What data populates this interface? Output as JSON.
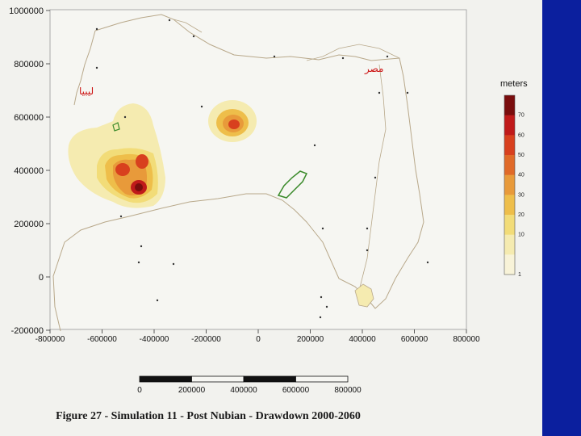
{
  "map": {
    "y_ticks": [
      {
        "label": "1000000",
        "value": 1000000
      },
      {
        "label": "800000",
        "value": 800000
      },
      {
        "label": "600000",
        "value": 600000
      },
      {
        "label": "400000",
        "value": 400000
      },
      {
        "label": "200000",
        "value": 200000
      },
      {
        "label": "0",
        "value": 0
      },
      {
        "label": "-200000",
        "value": -200000
      }
    ],
    "x_ticks": [
      {
        "label": "-800000",
        "value": -800000
      },
      {
        "label": "-600000",
        "value": -600000
      },
      {
        "label": "-400000",
        "value": -400000
      },
      {
        "label": "-200000",
        "value": -200000
      },
      {
        "label": "0",
        "value": 0
      },
      {
        "label": "200000",
        "value": 200000
      },
      {
        "label": "400000",
        "value": 400000
      },
      {
        "label": "600000",
        "value": 600000
      },
      {
        "label": "800000",
        "value": 800000
      }
    ],
    "country_labels": {
      "libya": "ليبيا",
      "egypt": "مصر"
    },
    "colors": {
      "boundary": "#b8a88a",
      "lake_outline": "#3a8a2a",
      "country_label": "#cc1111",
      "sidebar": "#0b1f9e"
    }
  },
  "legend": {
    "title": "meters",
    "ticks": [
      "70",
      "60",
      "50",
      "40",
      "30",
      "20",
      "10",
      "1"
    ],
    "colors": [
      "#7a0d0d",
      "#c01a1a",
      "#d8401e",
      "#e06a28",
      "#e89a3a",
      "#eebe4a",
      "#f2dc78",
      "#f5ebb0",
      "#f8f3d8"
    ]
  },
  "scale_bar": {
    "labels": [
      "0",
      "200000",
      "400000",
      "600000",
      "800000"
    ]
  },
  "caption": "Figure 27 - Simulation 11 - Post Nubian - Drawdown 2000-2060"
}
